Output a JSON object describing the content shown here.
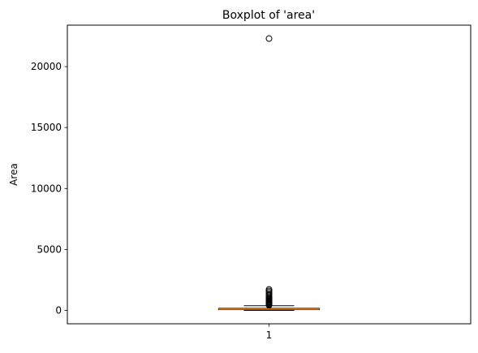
{
  "chart_data": {
    "type": "boxplot",
    "title": "Boxplot of 'area'",
    "xlabel": "",
    "ylabel": "Area",
    "categories": [
      "1"
    ],
    "ylim": [
      -1100,
      23400
    ],
    "yticks": [
      0,
      5000,
      10000,
      15000,
      20000
    ],
    "ytick_labels": [
      "0",
      "5000",
      "10000",
      "15000",
      "20000"
    ],
    "xtick_labels": [
      "1"
    ],
    "grid": false,
    "boxes": [
      {
        "name": "",
        "whisker_low": 0,
        "q1": 60,
        "median": 110,
        "q3": 170,
        "whisker_high": 380,
        "outliers": [
          420,
          460,
          500,
          550,
          600,
          650,
          700,
          760,
          830,
          900,
          980,
          1050,
          1150,
          1250,
          1350,
          1480,
          1600,
          1720,
          22300
        ]
      }
    ],
    "colors": {
      "median": "#ff7f0e",
      "box": "#000000",
      "outlier": "#000000"
    }
  }
}
